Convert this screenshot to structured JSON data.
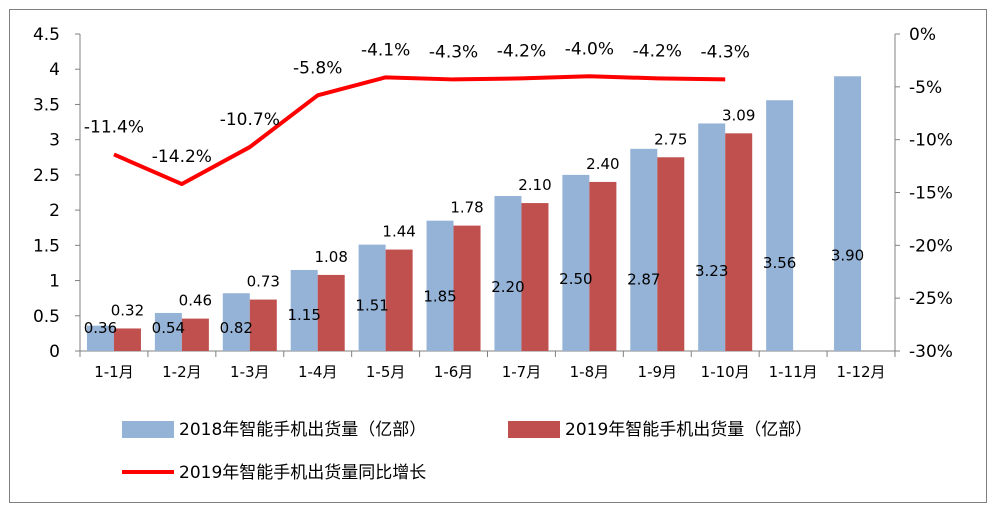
{
  "chart_data": {
    "type": "bar",
    "categories": [
      "1-1月",
      "1-2月",
      "1-3月",
      "1-4月",
      "1-5月",
      "1-6月",
      "1-7月",
      "1-8月",
      "1-9月",
      "1-10月",
      "1-11月",
      "1-12月"
    ],
    "series": [
      {
        "name": "2018年智能手机出货量（亿部）",
        "type": "bar",
        "axis": "left",
        "color": "#95B3D7",
        "values": [
          0.36,
          0.54,
          0.82,
          1.15,
          1.51,
          1.85,
          2.2,
          2.5,
          2.87,
          3.23,
          3.56,
          3.9
        ],
        "labels": [
          "0.36",
          "0.54",
          "0.82",
          "1.15",
          "1.51",
          "1.85",
          "2.20",
          "2.50",
          "2.87",
          "3.23",
          "3.56",
          "3.90"
        ]
      },
      {
        "name": "2019年智能手机出货量（亿部）",
        "type": "bar",
        "axis": "left",
        "color": "#C0504D",
        "values": [
          0.32,
          0.46,
          0.73,
          1.08,
          1.44,
          1.78,
          2.1,
          2.4,
          2.75,
          3.09,
          null,
          null
        ],
        "labels": [
          "0.32",
          "0.46",
          "0.73",
          "1.08",
          "1.44",
          "1.78",
          "2.10",
          "2.40",
          "2.75",
          "3.09",
          "",
          ""
        ]
      },
      {
        "name": "2019年智能手机出货量同比增长",
        "type": "line",
        "axis": "right",
        "color": "#FF0000",
        "values": [
          -11.4,
          -14.2,
          -10.7,
          -5.8,
          -4.1,
          -4.3,
          -4.2,
          -4.0,
          -4.2,
          -4.3,
          null,
          null
        ],
        "labels": [
          "-11.4%",
          "-14.2%",
          "-10.7%",
          "-5.8%",
          "-4.1%",
          "-4.3%",
          "-4.2%",
          "-4.0%",
          "-4.2%",
          "-4.3%",
          "",
          ""
        ]
      }
    ],
    "y_left": {
      "min": 0,
      "max": 4.5,
      "ticks": [
        "0",
        "0.5",
        "1",
        "1.5",
        "2",
        "2.5",
        "3",
        "3.5",
        "4",
        "4.5"
      ]
    },
    "y_right": {
      "min": -30,
      "max": 0,
      "ticks": [
        "-30%",
        "-25%",
        "-20%",
        "-15%",
        "-10%",
        "-5%",
        "0%"
      ]
    },
    "legend_position": "bottom",
    "title": "",
    "xlabel": "",
    "ylabel": ""
  }
}
